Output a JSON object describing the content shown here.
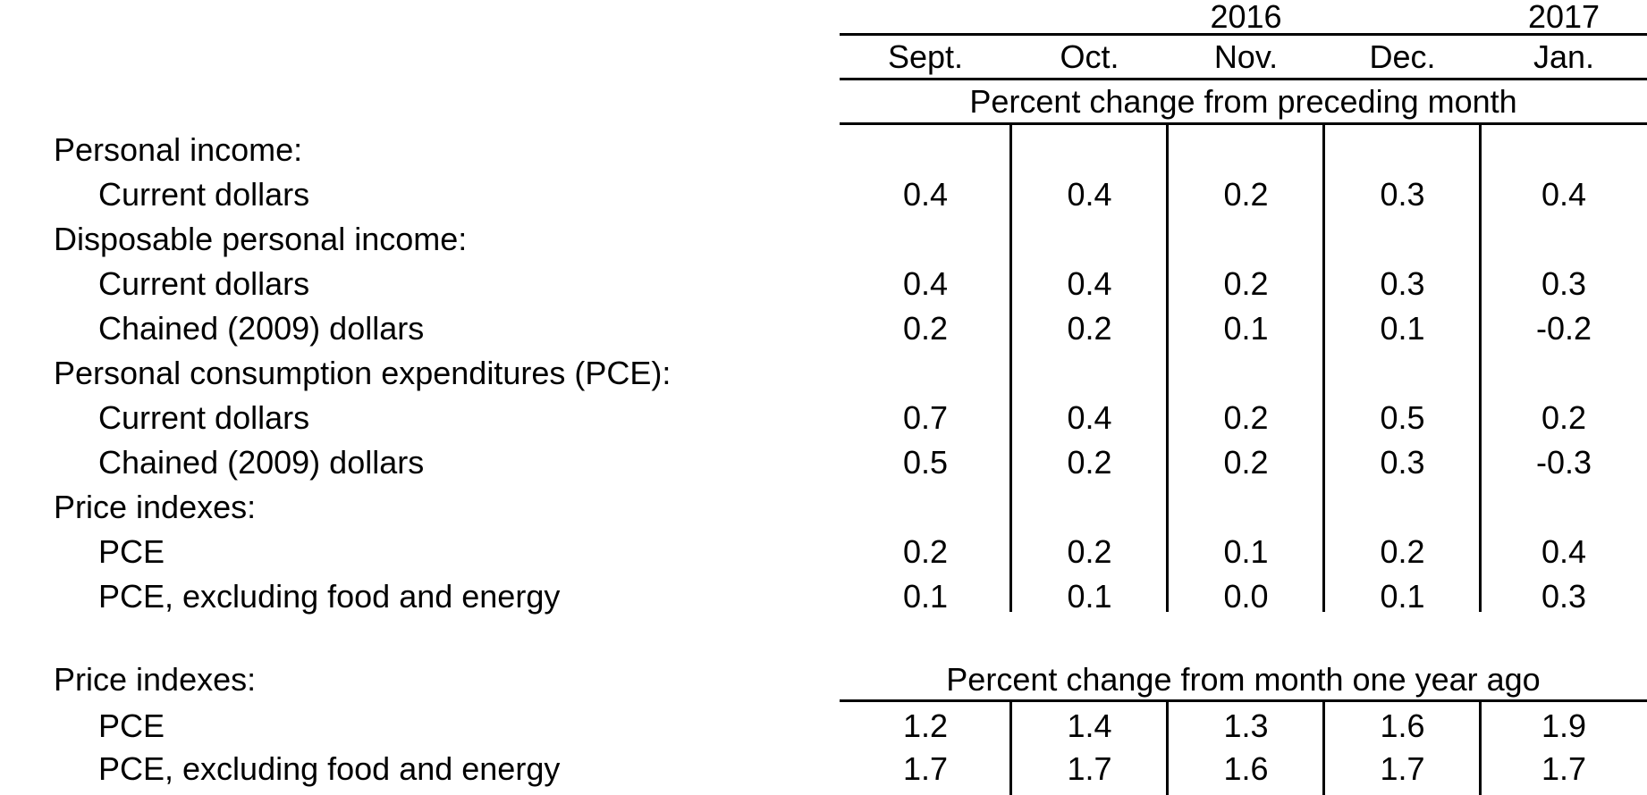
{
  "colors": {
    "background": "#ffffff",
    "text": "#000000",
    "rule": "#000000"
  },
  "table": {
    "years": [
      {
        "label": "2016",
        "over_months": [
          "Sept.",
          "Oct.",
          "Nov.",
          "Dec."
        ]
      },
      {
        "label": "2017",
        "over_months": [
          "Jan."
        ]
      }
    ],
    "months": [
      "Sept.",
      "Oct.",
      "Nov.",
      "Dec.",
      "Jan."
    ],
    "sections": [
      {
        "banner": "Percent change from preceding month",
        "rows": [
          {
            "label": "Personal income:",
            "indent": 0,
            "values": []
          },
          {
            "label": "Current dollars",
            "indent": 1,
            "values": [
              "0.4",
              "0.4",
              "0.2",
              "0.3",
              "0.4"
            ]
          },
          {
            "label": "Disposable personal income:",
            "indent": 0,
            "values": []
          },
          {
            "label": "Current dollars",
            "indent": 1,
            "values": [
              "0.4",
              "0.4",
              "0.2",
              "0.3",
              "0.3"
            ]
          },
          {
            "label": "Chained (2009) dollars",
            "indent": 1,
            "values": [
              "0.2",
              "0.2",
              "0.1",
              "0.1",
              "-0.2"
            ]
          },
          {
            "label": "Personal consumption expenditures (PCE):",
            "indent": 0,
            "values": []
          },
          {
            "label": "Current dollars",
            "indent": 1,
            "values": [
              "0.7",
              "0.4",
              "0.2",
              "0.5",
              "0.2"
            ]
          },
          {
            "label": "Chained (2009) dollars",
            "indent": 1,
            "values": [
              "0.5",
              "0.2",
              "0.2",
              "0.3",
              "-0.3"
            ]
          },
          {
            "label": "Price indexes:",
            "indent": 0,
            "values": []
          },
          {
            "label": "PCE",
            "indent": 1,
            "values": [
              "0.2",
              "0.2",
              "0.1",
              "0.2",
              "0.4"
            ]
          },
          {
            "label": "PCE, excluding food and energy",
            "indent": 1,
            "values": [
              "0.1",
              "0.1",
              "0.0",
              "0.1",
              "0.3"
            ]
          }
        ]
      },
      {
        "header_label": "Price indexes:",
        "banner": "Percent change from month one year ago",
        "rows": [
          {
            "label": "PCE",
            "indent": 1,
            "values": [
              "1.2",
              "1.4",
              "1.3",
              "1.6",
              "1.9"
            ]
          },
          {
            "label": "PCE, excluding food and energy",
            "indent": 1,
            "values": [
              "1.7",
              "1.7",
              "1.6",
              "1.7",
              "1.7"
            ]
          }
        ]
      }
    ]
  },
  "chart_data": {
    "type": "table",
    "title": "",
    "column_groups": [
      {
        "label": "2016",
        "columns": [
          "Sept.",
          "Oct.",
          "Nov.",
          "Dec."
        ]
      },
      {
        "label": "2017",
        "columns": [
          "Jan."
        ]
      }
    ],
    "columns": [
      "Sept.",
      "Oct.",
      "Nov.",
      "Dec.",
      "Jan."
    ],
    "sections": [
      {
        "unit_banner": "Percent change from preceding month",
        "rows": [
          {
            "label": "Personal income: Current dollars",
            "values": [
              0.4,
              0.4,
              0.2,
              0.3,
              0.4
            ]
          },
          {
            "label": "Disposable personal income: Current dollars",
            "values": [
              0.4,
              0.4,
              0.2,
              0.3,
              0.3
            ]
          },
          {
            "label": "Disposable personal income: Chained (2009) dollars",
            "values": [
              0.2,
              0.2,
              0.1,
              0.1,
              -0.2
            ]
          },
          {
            "label": "Personal consumption expenditures (PCE): Current dollars",
            "values": [
              0.7,
              0.4,
              0.2,
              0.5,
              0.2
            ]
          },
          {
            "label": "Personal consumption expenditures (PCE): Chained (2009) dollars",
            "values": [
              0.5,
              0.2,
              0.2,
              0.3,
              -0.3
            ]
          },
          {
            "label": "Price indexes: PCE",
            "values": [
              0.2,
              0.2,
              0.1,
              0.2,
              0.4
            ]
          },
          {
            "label": "Price indexes: PCE, excluding food and energy",
            "values": [
              0.1,
              0.1,
              0.0,
              0.1,
              0.3
            ]
          }
        ]
      },
      {
        "unit_banner": "Percent change from month one year ago",
        "rows": [
          {
            "label": "Price indexes: PCE",
            "values": [
              1.2,
              1.4,
              1.3,
              1.6,
              1.9
            ]
          },
          {
            "label": "Price indexes: PCE, excluding food and energy",
            "values": [
              1.7,
              1.7,
              1.6,
              1.7,
              1.7
            ]
          }
        ]
      }
    ]
  }
}
